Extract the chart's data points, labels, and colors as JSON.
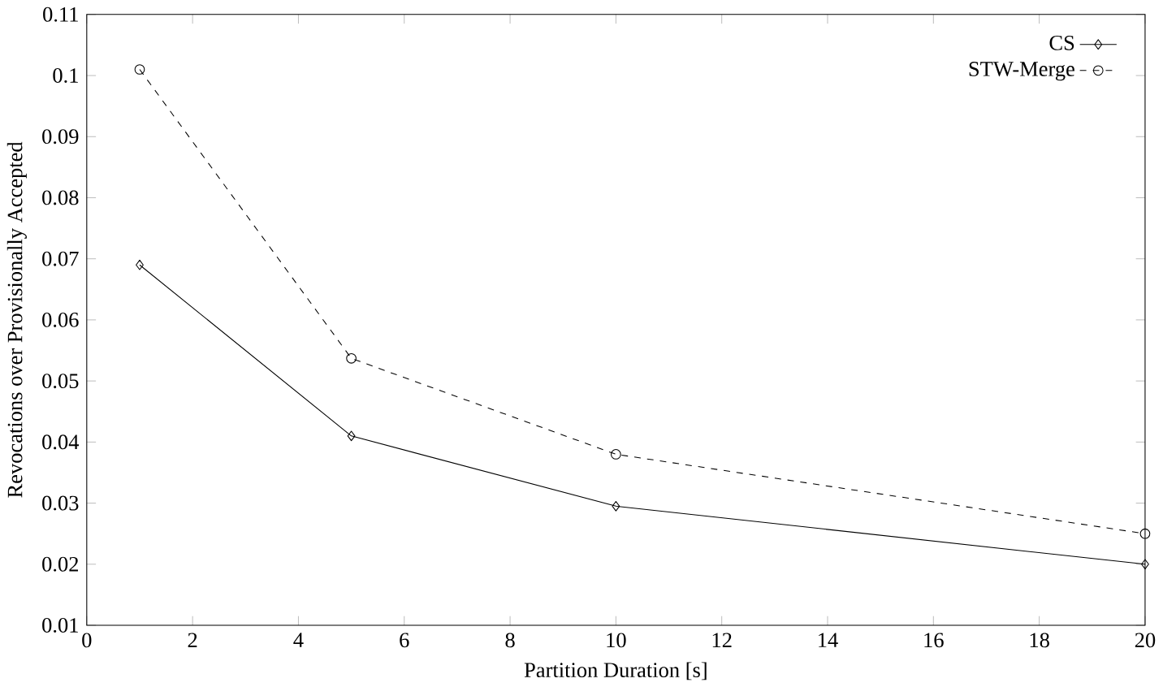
{
  "chart_data": {
    "type": "line",
    "xlabel": "Partition Duration [s]",
    "ylabel": "Revocations over Provisionally Accepted",
    "x": [
      1,
      5,
      10,
      20
    ],
    "series": [
      {
        "name": "CS",
        "color": "#000000",
        "values": [
          0.069,
          0.041,
          0.0295,
          0.02
        ],
        "marker": "diamond",
        "line_style": "solid"
      },
      {
        "name": "STW-Merge",
        "color": "#000000",
        "values": [
          0.101,
          0.0537,
          0.038,
          0.025
        ],
        "marker": "circle",
        "line_style": "dashed"
      }
    ],
    "xlim": [
      0,
      20
    ],
    "xticks": [
      0,
      2,
      4,
      6,
      8,
      10,
      12,
      14,
      16,
      18,
      20
    ],
    "ylim": [
      0.01,
      0.11
    ],
    "yticks": [
      0.01,
      0.02,
      0.03,
      0.04,
      0.05,
      0.06,
      0.07,
      0.08,
      0.09,
      0.1,
      0.11
    ],
    "legend": "top right",
    "grid": false
  }
}
